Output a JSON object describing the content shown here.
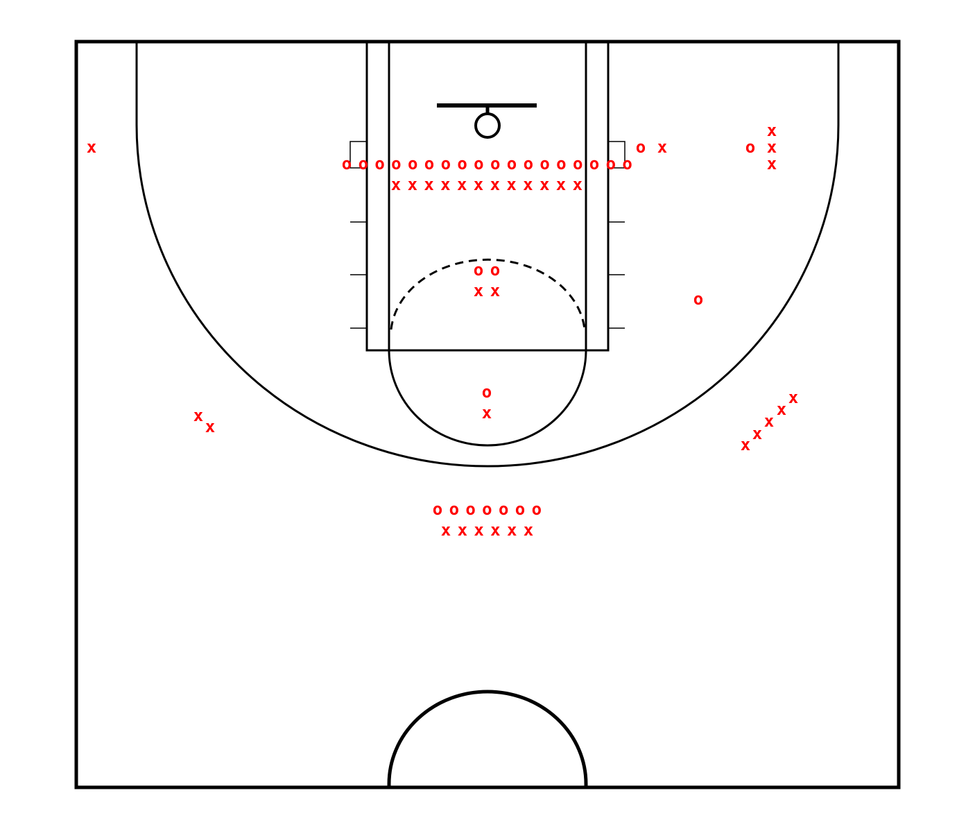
{
  "colors": {
    "court_lines": "#000000",
    "markers": "#ff0000",
    "background": "#ffffff"
  },
  "markers": {
    "symbols": {
      "offense": "o",
      "defense": "x"
    },
    "groups": [
      {
        "name": "left-corner-defender",
        "type": "defense",
        "count": 1
      },
      {
        "name": "baseline-row-offense",
        "type": "offense",
        "count": 18
      },
      {
        "name": "baseline-row-defense",
        "type": "defense",
        "count": 12
      },
      {
        "name": "right-wing-pair",
        "type": "mixed",
        "count": 2
      },
      {
        "name": "right-corner-offense",
        "type": "offense",
        "count": 1
      },
      {
        "name": "right-corner-column",
        "type": "defense",
        "count": 3
      },
      {
        "name": "high-post-offense",
        "type": "offense",
        "count": 2
      },
      {
        "name": "high-post-defense",
        "type": "defense",
        "count": 2
      },
      {
        "name": "right-elbow-offense",
        "type": "offense",
        "count": 1
      },
      {
        "name": "top-key-pair",
        "type": "mixed",
        "count": 2
      },
      {
        "name": "left-wing-defenders",
        "type": "defense",
        "count": 2
      },
      {
        "name": "right-wing-diagonal",
        "type": "defense",
        "count": 5
      },
      {
        "name": "halfcourt-row-offense",
        "type": "offense",
        "count": 7
      },
      {
        "name": "halfcourt-row-defense",
        "type": "defense",
        "count": 6
      }
    ]
  }
}
